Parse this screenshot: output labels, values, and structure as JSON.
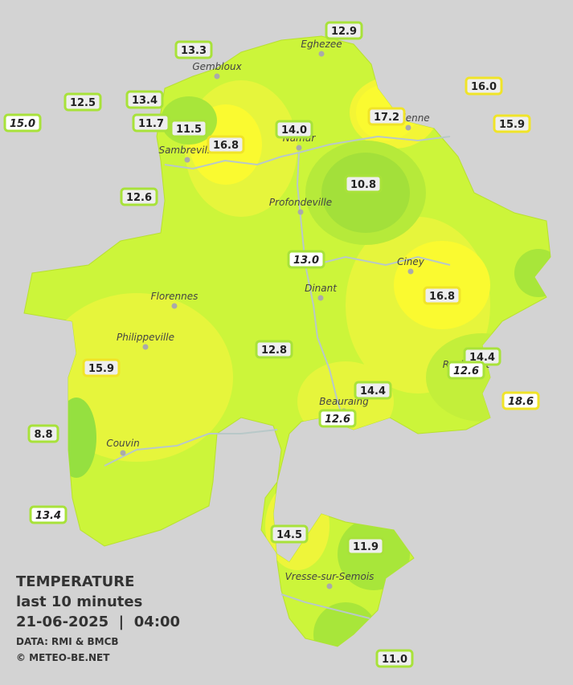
{
  "header": {
    "title": "TEMPERATURE",
    "subtitle": "last 10 minutes",
    "datetime": "21-06-2025  |  04:00",
    "source": "DATA: RMI & BMCB",
    "credit": "© METEO-BE.NET"
  },
  "cities": [
    "Eghezee",
    "Gembloux",
    "Andenne",
    "Namur",
    "Sambreville",
    "Profondeville",
    "Ciney",
    "Dinant",
    "Florennes",
    "Philippeville",
    "Beauraing",
    "Rochefort",
    "Couvin",
    "Vresse-sur-Semois"
  ],
  "stations": [
    {
      "label": "12.9",
      "value": 12.9
    },
    {
      "label": "13.3",
      "value": 13.3
    },
    {
      "label": "16.0",
      "value": 16.0
    },
    {
      "label": "12.5",
      "value": 12.5
    },
    {
      "label": "13.4",
      "value": 13.4
    },
    {
      "label": "15.0",
      "value": 15.0
    },
    {
      "label": "11.7",
      "value": 11.7
    },
    {
      "label": "11.5",
      "value": 11.5
    },
    {
      "label": "17.2",
      "value": 17.2
    },
    {
      "label": "14.0",
      "value": 14.0
    },
    {
      "label": "15.9",
      "value": 15.9
    },
    {
      "label": "16.8",
      "value": 16.8
    },
    {
      "label": "10.8",
      "value": 10.8
    },
    {
      "label": "12.6",
      "value": 12.6
    },
    {
      "label": "13.0",
      "value": 13.0
    },
    {
      "label": "16.8",
      "value": 16.8
    },
    {
      "label": "12.8",
      "value": 12.8
    },
    {
      "label": "14.4",
      "value": 14.4
    },
    {
      "label": "15.9",
      "value": 15.9
    },
    {
      "label": "12.6",
      "value": 12.6
    },
    {
      "label": "14.4",
      "value": 14.4
    },
    {
      "label": "18.6",
      "value": 18.6
    },
    {
      "label": "12.6",
      "value": 12.6
    },
    {
      "label": "8.8",
      "value": 8.8
    },
    {
      "label": "13.4",
      "value": 13.4
    },
    {
      "label": "14.5",
      "value": 14.5
    },
    {
      "label": "11.9",
      "value": 11.9
    },
    {
      "label": "11.0",
      "value": 11.0
    }
  ]
}
